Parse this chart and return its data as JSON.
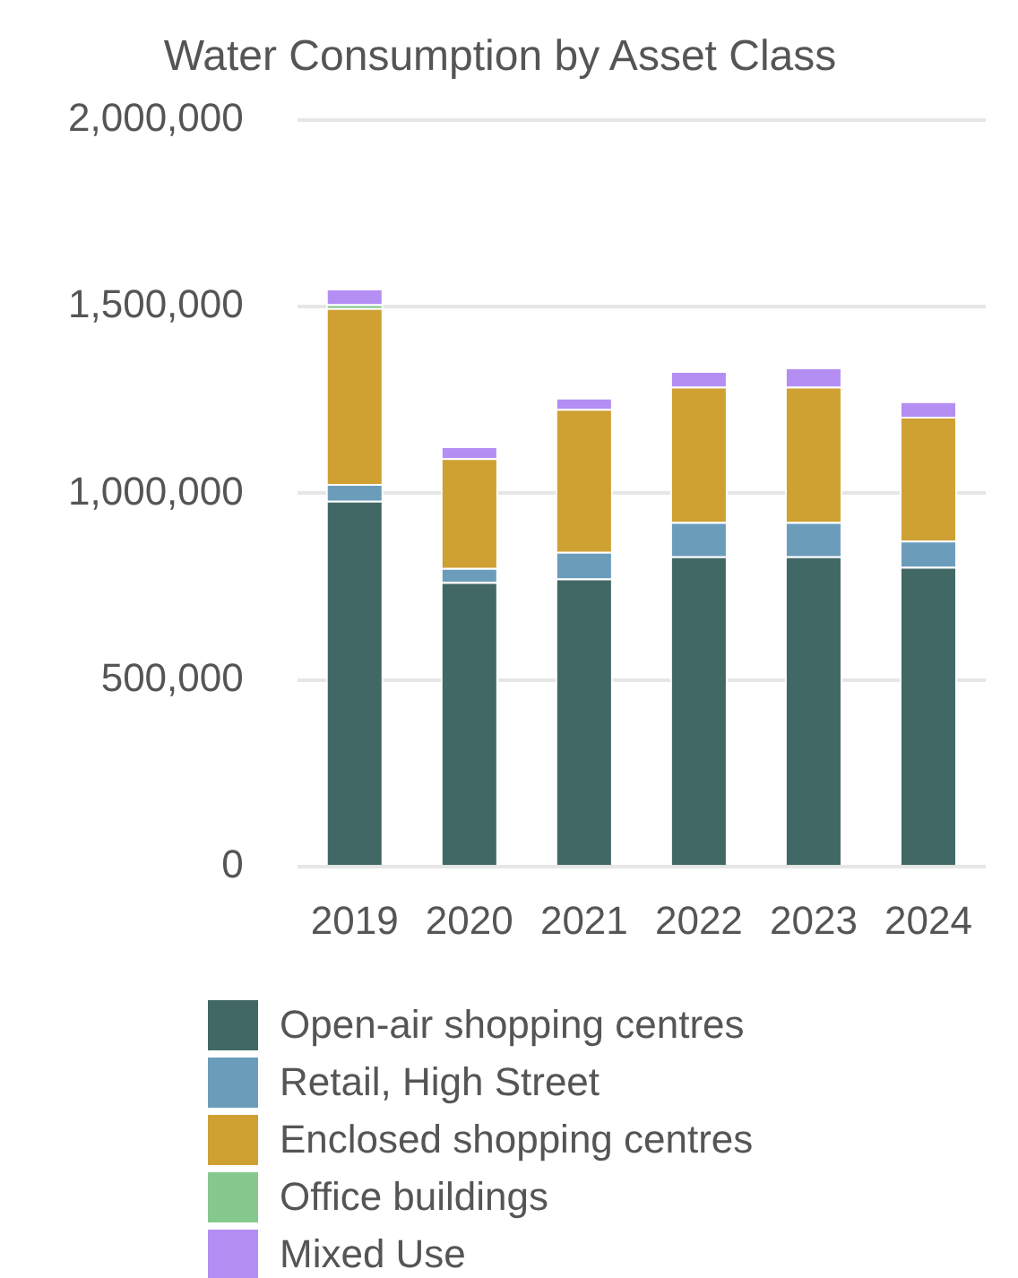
{
  "chart_data": {
    "type": "bar",
    "title": "Water Consumption by Asset Class",
    "categories": [
      "2019",
      "2020",
      "2021",
      "2022",
      "2023",
      "2024"
    ],
    "stacked": true,
    "series": [
      {
        "name": "Open-air shopping centres",
        "color": "#426865",
        "values": [
          980000,
          762000,
          772000,
          831000,
          831000,
          803000
        ]
      },
      {
        "name": "Retail, High Street",
        "color": "#6b9dbb",
        "values": [
          45000,
          38000,
          71000,
          92000,
          92000,
          70000
        ]
      },
      {
        "name": "Enclosed shopping centres",
        "color": "#cfa032",
        "values": [
          471000,
          294000,
          383000,
          362000,
          362000,
          332000
        ]
      },
      {
        "name": "Office buildings",
        "color": "#85c98e",
        "values": [
          10000,
          null,
          null,
          null,
          null,
          null
        ]
      },
      {
        "name": "Mixed Use",
        "color": "#b48ef3",
        "values": [
          42000,
          32000,
          30000,
          42000,
          52000,
          41000
        ]
      }
    ],
    "ylim": [
      0,
      2000000
    ],
    "yticks": [
      0,
      {
        "value": 500000,
        "label": "500,000"
      },
      {
        "value": 1000000,
        "label": "1,000,000"
      },
      {
        "value": 1500000,
        "label": "1,500,000"
      },
      {
        "value": 2000000,
        "label": "2,000,000"
      }
    ],
    "grid": "y",
    "legend": "bottom"
  }
}
